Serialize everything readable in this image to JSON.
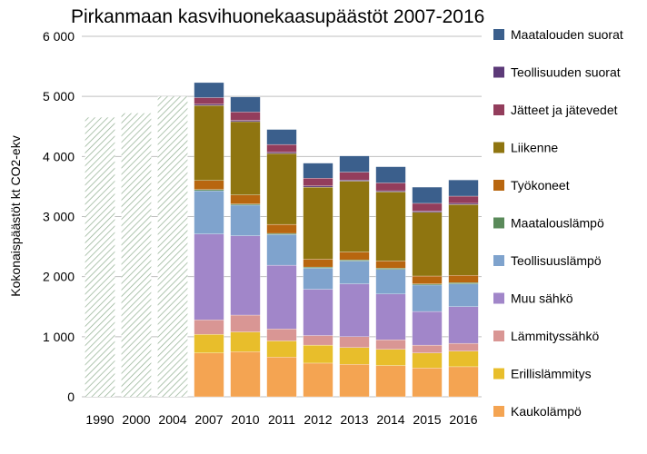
{
  "chart_data": {
    "type": "bar",
    "stacked": true,
    "title": "Pirkanmaan kasvihuonekaasupäästöt 2007-2016",
    "ylabel": "Kokonaispäästöt kt CO2-ekv",
    "xlabel": "",
    "ylim": [
      0,
      6000
    ],
    "yticks": [
      0,
      1000,
      2000,
      3000,
      4000,
      5000,
      6000
    ],
    "ytick_labels": [
      "0",
      "1 000",
      "2 000",
      "3 000",
      "4 000",
      "5 000",
      "6 000"
    ],
    "grid": true,
    "legend_position": "right",
    "categories": [
      "1990",
      "2000",
      "2004",
      "2007",
      "2010",
      "2011",
      "2012",
      "2013",
      "2014",
      "2015",
      "2016"
    ],
    "totals_hatched": [
      {
        "category": "1990",
        "value": 4650
      },
      {
        "category": "2000",
        "value": 4720
      },
      {
        "category": "2004",
        "value": 5000
      }
    ],
    "series": [
      {
        "name": "Kaukolämpö",
        "color": "#F4A452",
        "values": [
          null,
          null,
          null,
          730,
          750,
          660,
          560,
          540,
          520,
          480,
          500
        ]
      },
      {
        "name": "Erillislämmitys",
        "color": "#E8BE2B",
        "values": [
          null,
          null,
          null,
          310,
          330,
          270,
          300,
          280,
          270,
          250,
          260
        ]
      },
      {
        "name": "Lämmityssähkö",
        "color": "#D99694",
        "values": [
          null,
          null,
          null,
          240,
          280,
          200,
          160,
          180,
          160,
          130,
          130
        ]
      },
      {
        "name": "Muu sähkö",
        "color": "#A186C9",
        "values": [
          null,
          null,
          null,
          1430,
          1320,
          1060,
          770,
          880,
          760,
          560,
          610
        ]
      },
      {
        "name": "Teollisuuslämpö",
        "color": "#7FA3CD",
        "values": [
          null,
          null,
          null,
          720,
          510,
          510,
          350,
          380,
          410,
          440,
          380
        ]
      },
      {
        "name": "Maatalouslämpö",
        "color": "#5A8A5A",
        "values": [
          null,
          null,
          null,
          20,
          20,
          20,
          20,
          20,
          20,
          20,
          20
        ]
      },
      {
        "name": "Työkoneet",
        "color": "#B8660F",
        "values": [
          null,
          null,
          null,
          150,
          150,
          150,
          130,
          130,
          120,
          130,
          120
        ]
      },
      {
        "name": "Liikenne",
        "color": "#8F7510",
        "values": [
          null,
          null,
          null,
          1250,
          1220,
          1180,
          1200,
          1180,
          1150,
          1060,
          1180
        ]
      },
      {
        "name": "Teollisuuden suorat",
        "color": "#5C3A78",
        "values": [
          null,
          null,
          null,
          20,
          20,
          20,
          20,
          20,
          20,
          20,
          20
        ]
      },
      {
        "name": "Jätteet ja jätevedet",
        "color": "#933D5C",
        "values": [
          null,
          null,
          null,
          110,
          140,
          130,
          130,
          130,
          130,
          130,
          120
        ]
      },
      {
        "name": "Maatalouden suorat",
        "color": "#3B5F8C",
        "values": [
          null,
          null,
          null,
          250,
          250,
          250,
          250,
          270,
          270,
          270,
          270
        ]
      }
    ],
    "legend_order": [
      "Maatalouden suorat",
      "Teollisuuden suorat",
      "Jätteet ja jätevedet",
      "Liikenne",
      "Työkoneet",
      "Maatalouslämpö",
      "Teollisuuslämpö",
      "Muu sähkö",
      "Lämmityssähkö",
      "Erillislämmitys",
      "Kaukolämpö"
    ]
  }
}
